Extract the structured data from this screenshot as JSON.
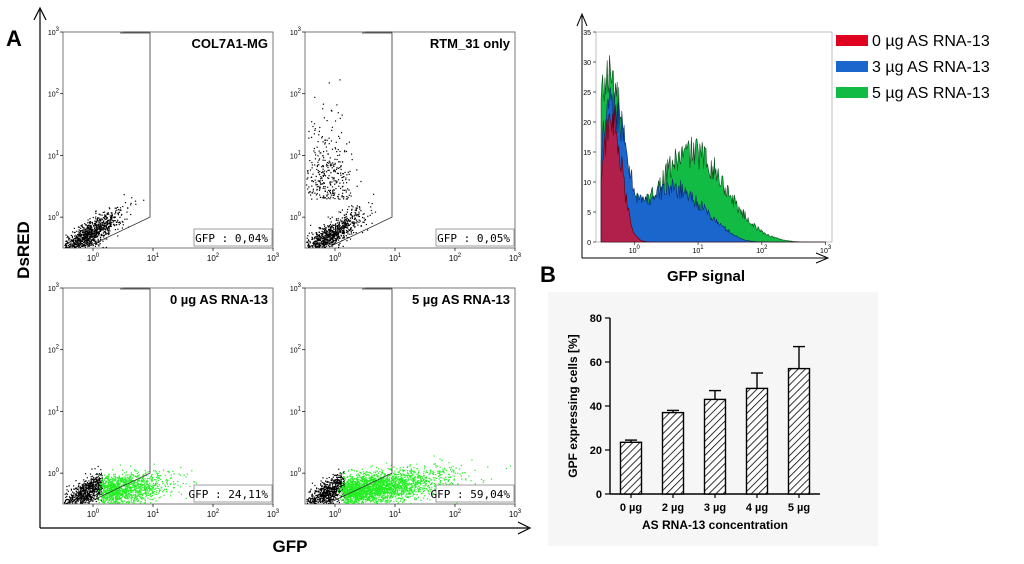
{
  "figure": {
    "panel_a_letter": "A",
    "panel_b_letter": "B",
    "y_axis_title": "DsRED",
    "x_axis_title": "GFP"
  },
  "chart_data": [
    {
      "type": "scatter",
      "title": "COL7A1-MG",
      "gate_label": "GFP : 0,04%",
      "xlabel": "GFP",
      "ylabel": "DsRED",
      "x_ticks": [
        "10^0",
        "10^1",
        "10^2",
        "10^3"
      ],
      "y_ticks": [
        "10^0",
        "10^1",
        "10^2",
        "10^3"
      ],
      "gfp_positive_percent": 0.04
    },
    {
      "type": "scatter",
      "title": "RTM_31 only",
      "gate_label": "GFP : 0,05%",
      "xlabel": "GFP",
      "ylabel": "DsRED",
      "x_ticks": [
        "10^0",
        "10^1",
        "10^2",
        "10^3"
      ],
      "y_ticks": [
        "10^0",
        "10^1",
        "10^2",
        "10^3"
      ],
      "gfp_positive_percent": 0.05
    },
    {
      "type": "scatter",
      "title": "0 µg AS RNA-13",
      "gate_label": "GFP : 24,11%",
      "xlabel": "GFP",
      "ylabel": "DsRED",
      "x_ticks": [
        "10^0",
        "10^1",
        "10^2",
        "10^3"
      ],
      "y_ticks": [
        "10^0",
        "10^1",
        "10^2",
        "10^3"
      ],
      "gfp_positive_percent": 24.11
    },
    {
      "type": "scatter",
      "title": "5 µg AS RNA-13",
      "gate_label": "GFP : 59,04%",
      "xlabel": "GFP",
      "ylabel": "DsRED",
      "x_ticks": [
        "10^0",
        "10^1",
        "10^2",
        "10^3"
      ],
      "y_ticks": [
        "10^0",
        "10^1",
        "10^2",
        "10^3"
      ],
      "gfp_positive_percent": 59.04
    },
    {
      "type": "area",
      "title": "",
      "xlabel": "GFP signal",
      "ylabel": "",
      "x_ticks": [
        "10^0",
        "10^1",
        "10^2",
        "10^3"
      ],
      "y_ticks": [
        0,
        5,
        10,
        15,
        20,
        25,
        30,
        35
      ],
      "ylim": [
        0,
        35
      ],
      "series": [
        {
          "name": "0 µg AS RNA-13",
          "color": "#e00020",
          "peak_log10": -0.35,
          "peak": 20
        },
        {
          "name": "3 µg AS RNA-13",
          "color": "#1a66cc",
          "peak_log10": -0.35,
          "peak": 23
        },
        {
          "name": "5 µg AS RNA-13",
          "color": "#11bb44",
          "peak_log10": -0.45,
          "peak": 34
        }
      ]
    },
    {
      "type": "bar",
      "title": "",
      "xlabel": "AS RNA-13 concentration",
      "ylabel": "GPF expressing cells [%]",
      "categories": [
        "0 µg",
        "2 µg",
        "3 µg",
        "4 µg",
        "5 µg"
      ],
      "values": [
        23.5,
        37,
        43,
        48,
        57
      ],
      "errors": [
        1,
        1,
        4,
        7,
        10
      ],
      "ylim": [
        0,
        80
      ],
      "y_ticks": [
        0,
        20,
        40,
        60,
        80
      ]
    }
  ]
}
